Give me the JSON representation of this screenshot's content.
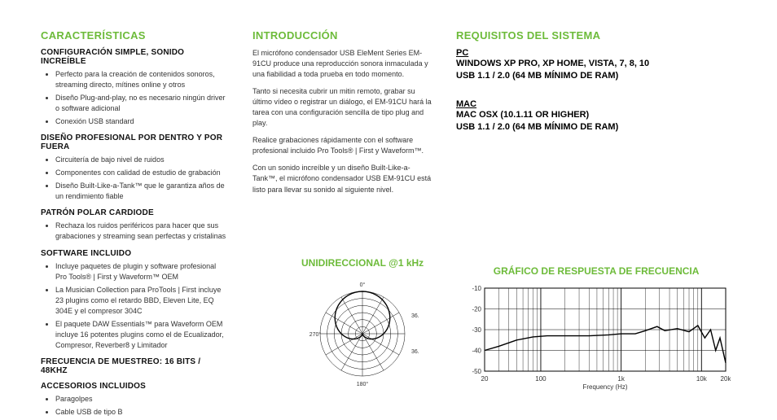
{
  "colors": {
    "accent": "#6dbb3a",
    "text": "#333333",
    "heading": "#111111",
    "grid": "#000000",
    "bg": "#ffffff"
  },
  "col1": {
    "title": "CARACTERÍSTICAS",
    "g1": {
      "h": "CONFIGURACIÓN SIMPLE, SONIDO INCREÍBLE",
      "i0": "Perfecto para la creación de contenidos sonoros, streaming directo, mítines online y otros",
      "i1": "Diseño Plug-and-play, no es necesario ningún driver o software adicional",
      "i2": "Conexión USB standard"
    },
    "g2": {
      "h": "DISEÑO PROFESIONAL POR DENTRO Y POR FUERA",
      "i0": "Circuitería de bajo nivel de ruidos",
      "i1": "Componentes con calidad de estudio de grabación",
      "i2": "Diseño Built-Like-a-Tank™ que le garantiza años de un rendimiento fiable"
    },
    "g3": {
      "h": "PATRÓN POLAR CARDIODE",
      "i0": "Rechaza los ruidos periféricos para hacer que sus grabaciones y streaming sean perfectas y cristalinas"
    },
    "g4": {
      "h": "SOFTWARE INCLUIDO",
      "i0": "Incluye paquetes de plugin y software profesional Pro Tools® | First y Waveform™ OEM",
      "i1": "La Musician Collection para ProTools | First incluye 23 plugins como el retardo BBD, Eleven Lite, EQ 304E y el compresor 304C",
      "i2": "El paquete DAW Essentials™ para Waveform OEM incluye 16 potentes plugins como el de Ecualizador, Compresor, Reverber8 y Limitador"
    },
    "g5": {
      "h": "FRECUENCIA DE MUESTREO: 16 BITS / 48KHZ"
    },
    "g6": {
      "h": "ACCESORIOS INCLUIDOS",
      "i0": "Paragolpes",
      "i1": "Cable USB de tipo B"
    }
  },
  "col2": {
    "title": "INTRODUCCIÓN",
    "p0": "El micrófono condensador USB EleMent Series EM-91CU produce una reproducción sonora inmaculada y una fiabilidad a toda prueba en todo momento.",
    "p1": "Tanto si necesita cubrir un mitin remoto, grabar su último vídeo o registrar un diálogo, el EM-91CU hará la tarea con una configuración sencilla de tipo plug and play.",
    "p2": "Realice grabaciones rápidamente con el software profesional incluido Pro Tools® | First y Waveform™.",
    "p3": "Con un sonido increíble y un diseño Built-Like-a-Tank™, el micrófono condensador USB EM-91CU está listo para llevar su sonido al siguiente nivel."
  },
  "col3": {
    "title": "REQUISITOS DEL SISTEMA",
    "pc": {
      "h": "PC",
      "l0": "WINDOWS XP PRO, XP HOME, VISTA, 7, 8, 10",
      "l1": "USB 1.1 / 2.0 (64 MB MÍNIMO DE RAM)"
    },
    "mac": {
      "h": "MAC",
      "l0": "MAC OSX (10.1.11 OR HIGHER)",
      "l1": "USB 1.1 / 2.0 (64 MB MÍNIMO DE RAM)"
    }
  },
  "polar": {
    "title": "UNIDIRECCIONAL @1 kHz",
    "type": "polar",
    "angle_labels": [
      "0°",
      "36.0",
      "36.0",
      "270°",
      "180°"
    ],
    "rings": 6,
    "spokes": 12,
    "pattern_color": "#000000",
    "grid_color": "#000000",
    "label_fontsize": 7,
    "cardioid_r_at_angle": [
      [
        0,
        1.0
      ],
      [
        30,
        0.97
      ],
      [
        60,
        0.88
      ],
      [
        90,
        0.72
      ],
      [
        120,
        0.5
      ],
      [
        150,
        0.28
      ],
      [
        180,
        0.08
      ],
      [
        210,
        0.28
      ],
      [
        240,
        0.5
      ],
      [
        270,
        0.72
      ],
      [
        300,
        0.88
      ],
      [
        330,
        0.97
      ]
    ]
  },
  "freq": {
    "title": "GRÁFICO DE RESPUESTA DE FRECUENCIA",
    "type": "line",
    "xlabel": "Frequency (Hz)",
    "x_scale": "log",
    "x_min": 20,
    "x_max": 20000,
    "x_ticks": [
      20,
      100,
      1000,
      10000,
      20000
    ],
    "x_tick_labels": [
      "20",
      "100",
      "1k",
      "10k",
      "20k"
    ],
    "y_min": -50,
    "y_max": -10,
    "y_step": 10,
    "y_ticks": [
      -10,
      -20,
      -30,
      -40,
      -50
    ],
    "line_color": "#000000",
    "grid_color": "#000000",
    "bg": "#ffffff",
    "line_width": 1.4,
    "label_fontsize": 8,
    "data": [
      [
        20,
        -40
      ],
      [
        30,
        -38
      ],
      [
        50,
        -35
      ],
      [
        80,
        -33.5
      ],
      [
        120,
        -33
      ],
      [
        200,
        -33
      ],
      [
        400,
        -33
      ],
      [
        700,
        -32.5
      ],
      [
        1000,
        -32
      ],
      [
        1500,
        -32
      ],
      [
        2000,
        -30.5
      ],
      [
        2800,
        -28.5
      ],
      [
        3500,
        -30.5
      ],
      [
        5000,
        -29.5
      ],
      [
        7000,
        -31
      ],
      [
        9000,
        -28
      ],
      [
        11000,
        -34
      ],
      [
        13000,
        -30
      ],
      [
        15000,
        -40
      ],
      [
        17000,
        -34
      ],
      [
        20000,
        -46
      ]
    ]
  }
}
